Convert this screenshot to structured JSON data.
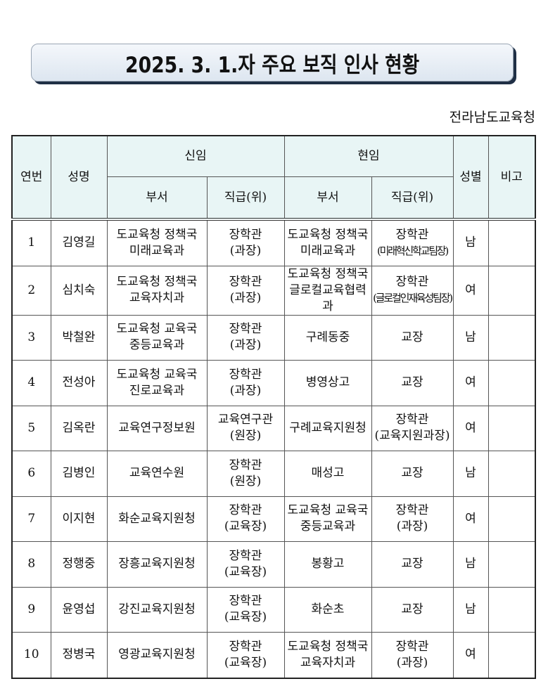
{
  "title": "2025. 3. 1.자 주요 보직 인사 현황",
  "org": "전라남도교육청",
  "headers": {
    "no": "연번",
    "name": "성명",
    "new": "신임",
    "current": "현임",
    "dept": "부서",
    "rank": "직급(위)",
    "gender": "성별",
    "note": "비고"
  },
  "rows": [
    {
      "no": "1",
      "name": "김영길",
      "new_dept": [
        "도교육청 정책국",
        "미래교육과"
      ],
      "new_rank": [
        "장학관",
        "(과장)"
      ],
      "cur_dept": [
        "도교육청 정책국",
        "미래교육과"
      ],
      "cur_rank": [
        "장학관",
        "(미래혁신학교팀장)"
      ],
      "gender": "남",
      "note": ""
    },
    {
      "no": "2",
      "name": "심치숙",
      "new_dept": [
        "도교육청 정책국",
        "교육자치과"
      ],
      "new_rank": [
        "장학관",
        "(과장)"
      ],
      "cur_dept": [
        "도교육청 정책국",
        "글로컬교육협력과"
      ],
      "cur_rank": [
        "장학관",
        "(글로컬인재육성팀장)"
      ],
      "gender": "여",
      "note": ""
    },
    {
      "no": "3",
      "name": "박철완",
      "new_dept": [
        "도교육청 교육국",
        "중등교육과"
      ],
      "new_rank": [
        "장학관",
        "(과장)"
      ],
      "cur_dept": [
        "구례동중"
      ],
      "cur_rank": [
        "교장"
      ],
      "gender": "남",
      "note": ""
    },
    {
      "no": "4",
      "name": "전성아",
      "new_dept": [
        "도교육청 교육국",
        "진로교육과"
      ],
      "new_rank": [
        "장학관",
        "(과장)"
      ],
      "cur_dept": [
        "병영상고"
      ],
      "cur_rank": [
        "교장"
      ],
      "gender": "여",
      "note": ""
    },
    {
      "no": "5",
      "name": "김옥란",
      "new_dept": [
        "교육연구정보원"
      ],
      "new_rank": [
        "교육연구관",
        "(원장)"
      ],
      "cur_dept": [
        "구례교육지원청"
      ],
      "cur_rank": [
        "장학관",
        "(교육지원과장)"
      ],
      "gender": "여",
      "note": ""
    },
    {
      "no": "6",
      "name": "김병인",
      "new_dept": [
        "교육연수원"
      ],
      "new_rank": [
        "장학관",
        "(원장)"
      ],
      "cur_dept": [
        "매성고"
      ],
      "cur_rank": [
        "교장"
      ],
      "gender": "남",
      "note": ""
    },
    {
      "no": "7",
      "name": "이지현",
      "new_dept": [
        "화순교육지원청"
      ],
      "new_rank": [
        "장학관",
        "(교육장)"
      ],
      "cur_dept": [
        "도교육청 교육국",
        "중등교육과"
      ],
      "cur_rank": [
        "장학관",
        "(과장)"
      ],
      "gender": "여",
      "note": ""
    },
    {
      "no": "8",
      "name": "정행중",
      "new_dept": [
        "장흥교육지원청"
      ],
      "new_rank": [
        "장학관",
        "(교육장)"
      ],
      "cur_dept": [
        "봉황고"
      ],
      "cur_rank": [
        "교장"
      ],
      "gender": "남",
      "note": ""
    },
    {
      "no": "9",
      "name": "윤영섭",
      "new_dept": [
        "강진교육지원청"
      ],
      "new_rank": [
        "장학관",
        "(교육장)"
      ],
      "cur_dept": [
        "화순초"
      ],
      "cur_rank": [
        "교장"
      ],
      "gender": "남",
      "note": ""
    },
    {
      "no": "10",
      "name": "정병국",
      "new_dept": [
        "영광교육지원청"
      ],
      "new_rank": [
        "장학관",
        "(교육장)"
      ],
      "cur_dept": [
        "도교육청 정책국",
        "교육자치과"
      ],
      "cur_rank": [
        "장학관",
        "(과장)"
      ],
      "gender": "여",
      "note": ""
    }
  ]
}
